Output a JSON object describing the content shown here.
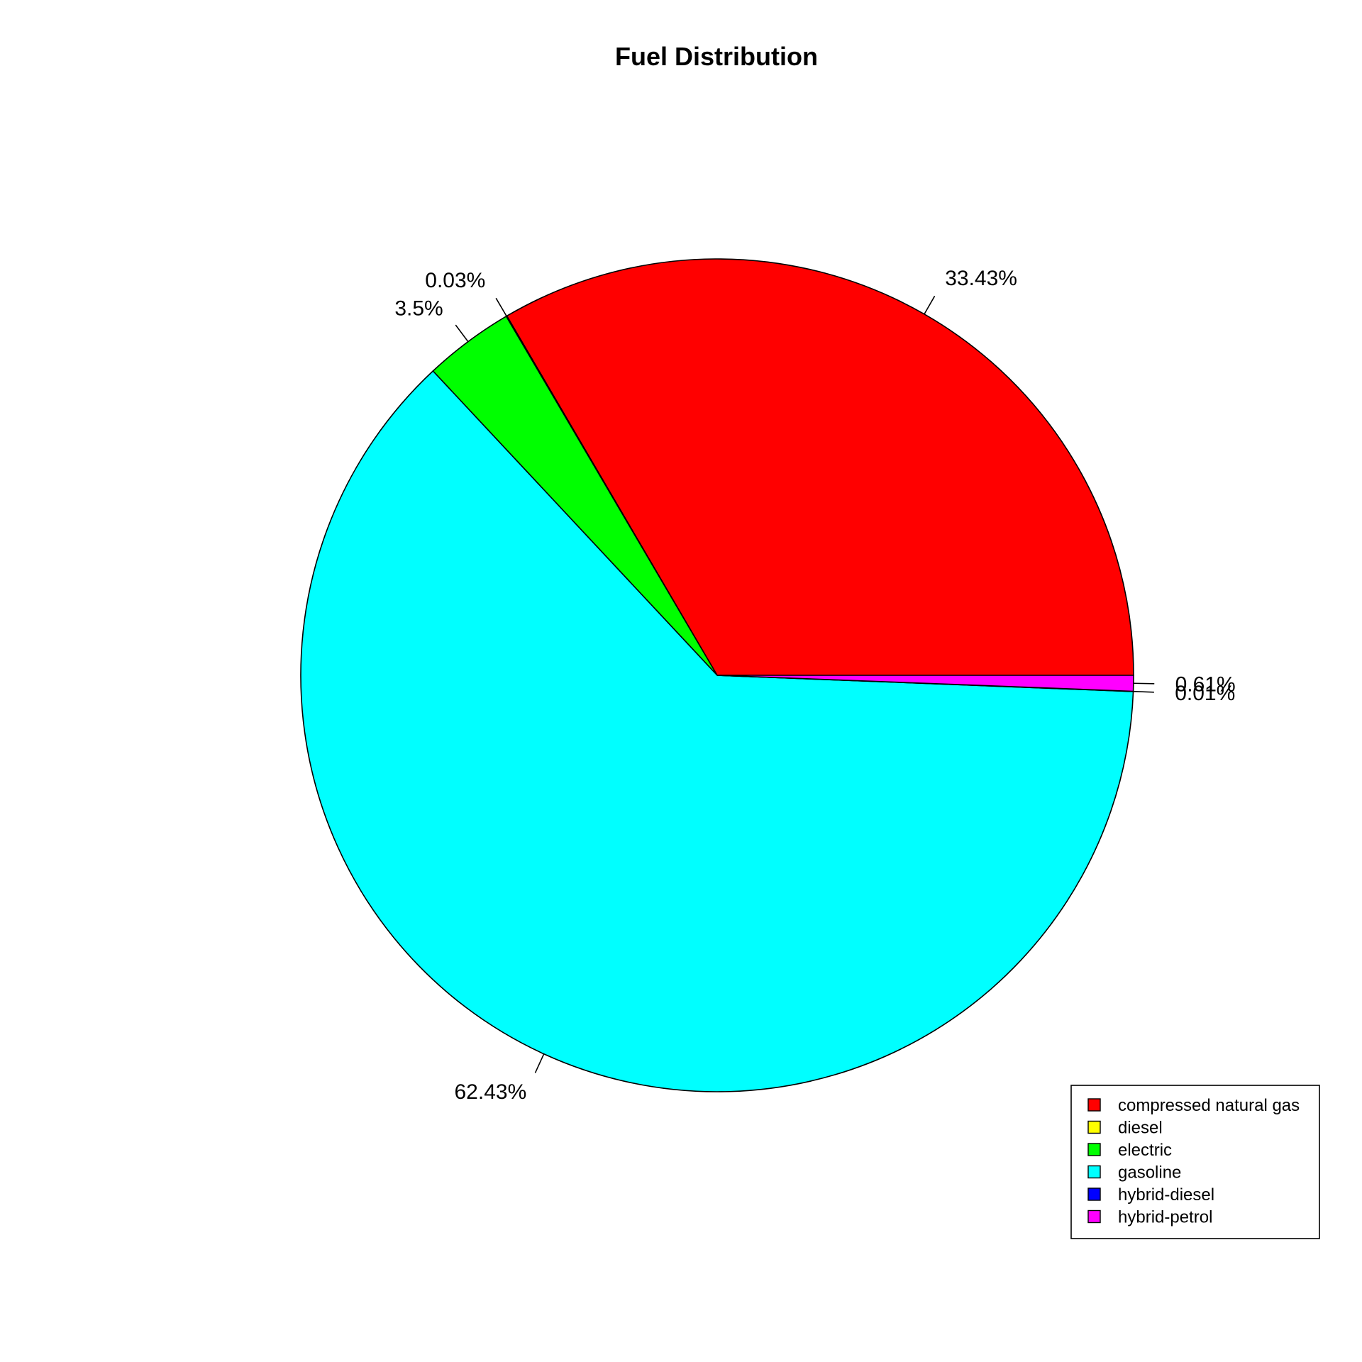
{
  "chart_data": {
    "type": "pie",
    "title": "Fuel Distribution",
    "legend_position": "bottom-right",
    "categories": [
      "compressed natural gas",
      "diesel",
      "electric",
      "gasoline",
      "hybrid-diesel",
      "hybrid-petrol"
    ],
    "values": [
      33.43,
      0.03,
      3.5,
      62.43,
      0.01,
      0.61
    ],
    "labels": [
      "33.43%",
      "0.03%",
      "3.5%",
      "62.43%",
      "0.01%",
      "0.61%"
    ],
    "colors": [
      "#FF0000",
      "#FFFF00",
      "#00FF00",
      "#00FFFF",
      "#0000FF",
      "#FF00FF"
    ]
  }
}
